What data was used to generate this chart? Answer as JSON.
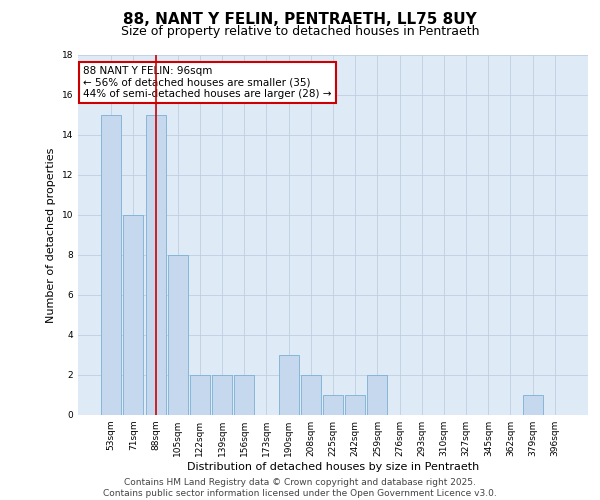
{
  "title": "88, NANT Y FELIN, PENTRAETH, LL75 8UY",
  "subtitle": "Size of property relative to detached houses in Pentraeth",
  "xlabel": "Distribution of detached houses by size in Pentraeth",
  "ylabel": "Number of detached properties",
  "categories": [
    "53sqm",
    "71sqm",
    "88sqm",
    "105sqm",
    "122sqm",
    "139sqm",
    "156sqm",
    "173sqm",
    "190sqm",
    "208sqm",
    "225sqm",
    "242sqm",
    "259sqm",
    "276sqm",
    "293sqm",
    "310sqm",
    "327sqm",
    "345sqm",
    "362sqm",
    "379sqm",
    "396sqm"
  ],
  "values": [
    15,
    10,
    15,
    8,
    2,
    2,
    2,
    0,
    3,
    2,
    1,
    1,
    2,
    0,
    0,
    0,
    0,
    0,
    0,
    1,
    0
  ],
  "bar_color": "#c5d8ed",
  "bar_edge_color": "#7aafd4",
  "highlight_index": 2,
  "highlight_line_color": "#cc0000",
  "ylim": [
    0,
    18
  ],
  "yticks": [
    0,
    2,
    4,
    6,
    8,
    10,
    12,
    14,
    16,
    18
  ],
  "annotation_text": "88 NANT Y FELIN: 96sqm\n← 56% of detached houses are smaller (35)\n44% of semi-detached houses are larger (28) →",
  "annotation_box_color": "#ffffff",
  "annotation_box_edge_color": "#cc0000",
  "background_color": "#deeaf5",
  "grid_color": "#c0cfe0",
  "footer_text": "Contains HM Land Registry data © Crown copyright and database right 2025.\nContains public sector information licensed under the Open Government Licence v3.0.",
  "title_fontsize": 11,
  "subtitle_fontsize": 9,
  "xlabel_fontsize": 8,
  "ylabel_fontsize": 8,
  "tick_fontsize": 6.5,
  "annotation_fontsize": 7.5,
  "footer_fontsize": 6.5
}
